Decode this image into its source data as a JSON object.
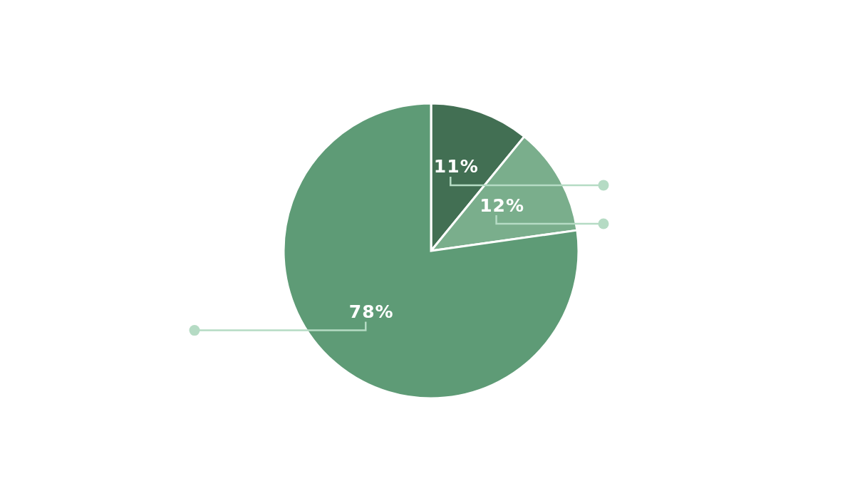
{
  "chart_data": {
    "type": "pie",
    "categories": [
      null,
      null,
      null
    ],
    "values": [
      11,
      12,
      78
    ],
    "colors": [
      "#426f53",
      "#7aae8c",
      "#5e9b76"
    ],
    "value_labels": [
      "11%",
      "12%",
      "78%"
    ],
    "legend": false
  }
}
